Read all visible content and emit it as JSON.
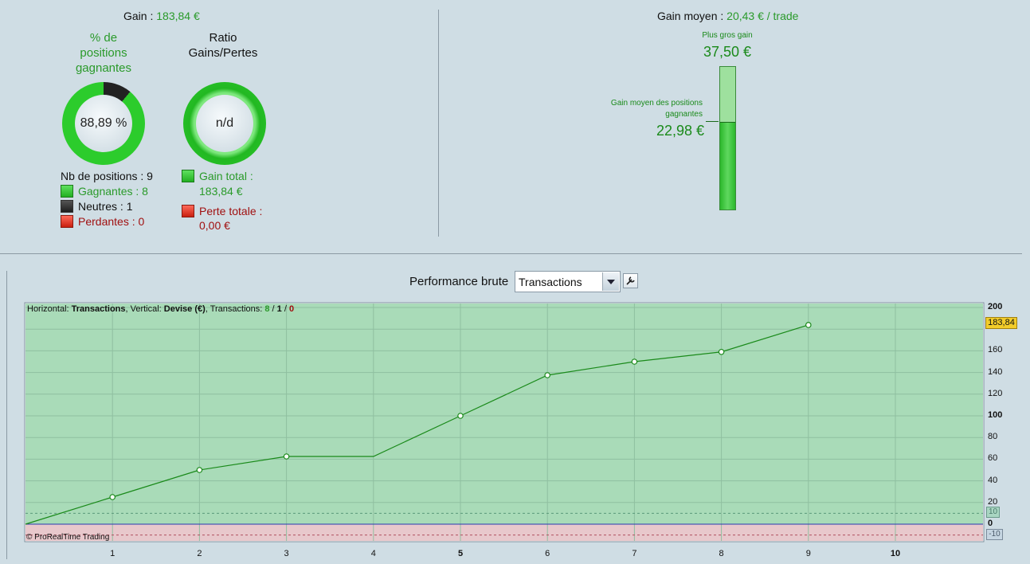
{
  "top_left": {
    "gain_label": "Gain :",
    "gain_value": "183,84 €",
    "pct_title": "% de positions gagnantes",
    "pct_value": "88,89 %",
    "pct_fraction": 0.8889,
    "ratio_title": "Ratio Gains/Pertes",
    "ratio_value": "n/d",
    "nb_positions": "Nb de positions : 9",
    "gagnantes": "Gagnantes : 8",
    "neutres": "Neutres : 1",
    "perdantes": "Perdantes : 0",
    "gain_total_label": "Gain total :",
    "gain_total_value": "183,84 €",
    "perte_totale_label": "Perte totale :",
    "perte_totale_value": "0,00 €"
  },
  "top_right": {
    "gain_moyen_label": "Gain moyen :",
    "gain_moyen_value": "20,43 € / trade",
    "plus_gros_label": "Plus gros gain",
    "plus_gros_value": "37,50 €",
    "moyen_pos_label": "Gain moyen des positions gagnantes",
    "moyen_pos_value": "22,98 €",
    "bar_fraction": 0.6128
  },
  "chart_header": {
    "title": "Performance brute",
    "select_value": "Transactions",
    "info_h": "Horizontal: ",
    "info_h_val": "Transactions",
    "info_v": ", Vertical: ",
    "info_v_val": "Devise (€)",
    "info_t": ", Transactions: ",
    "info_t_g": "8",
    "info_sep1": " / ",
    "info_t_n": "1",
    "info_sep2": " / ",
    "info_t_r": "0",
    "copyright": "© ProRealTime Trading",
    "last_value_tag": "183,84",
    "tag_pos": "10",
    "tag_neg": "-10"
  },
  "chart_data": {
    "type": "line",
    "x": [
      0,
      1,
      2,
      3,
      4,
      5,
      6,
      7,
      8,
      9
    ],
    "y": [
      0,
      25,
      50,
      62.5,
      62.5,
      100,
      137.5,
      150,
      159,
      183.84
    ],
    "markers_at": [
      1,
      2,
      3,
      5,
      6,
      7,
      8,
      9
    ],
    "xlim": [
      0,
      10.99
    ],
    "ylim": [
      -16,
      200
    ],
    "x_ticks": [
      "1",
      "2",
      "3",
      "4",
      "5",
      "6",
      "7",
      "8",
      "9",
      "10"
    ],
    "y_ticks": [
      "200",
      "160",
      "140",
      "120",
      "100",
      "80",
      "60",
      "40",
      "20",
      "0"
    ],
    "thresholds": [
      10,
      -10
    ],
    "line_color": "#1a8a1a",
    "positive_fill": "#a9dbb8",
    "negative_fill": "#e8c8cc"
  }
}
